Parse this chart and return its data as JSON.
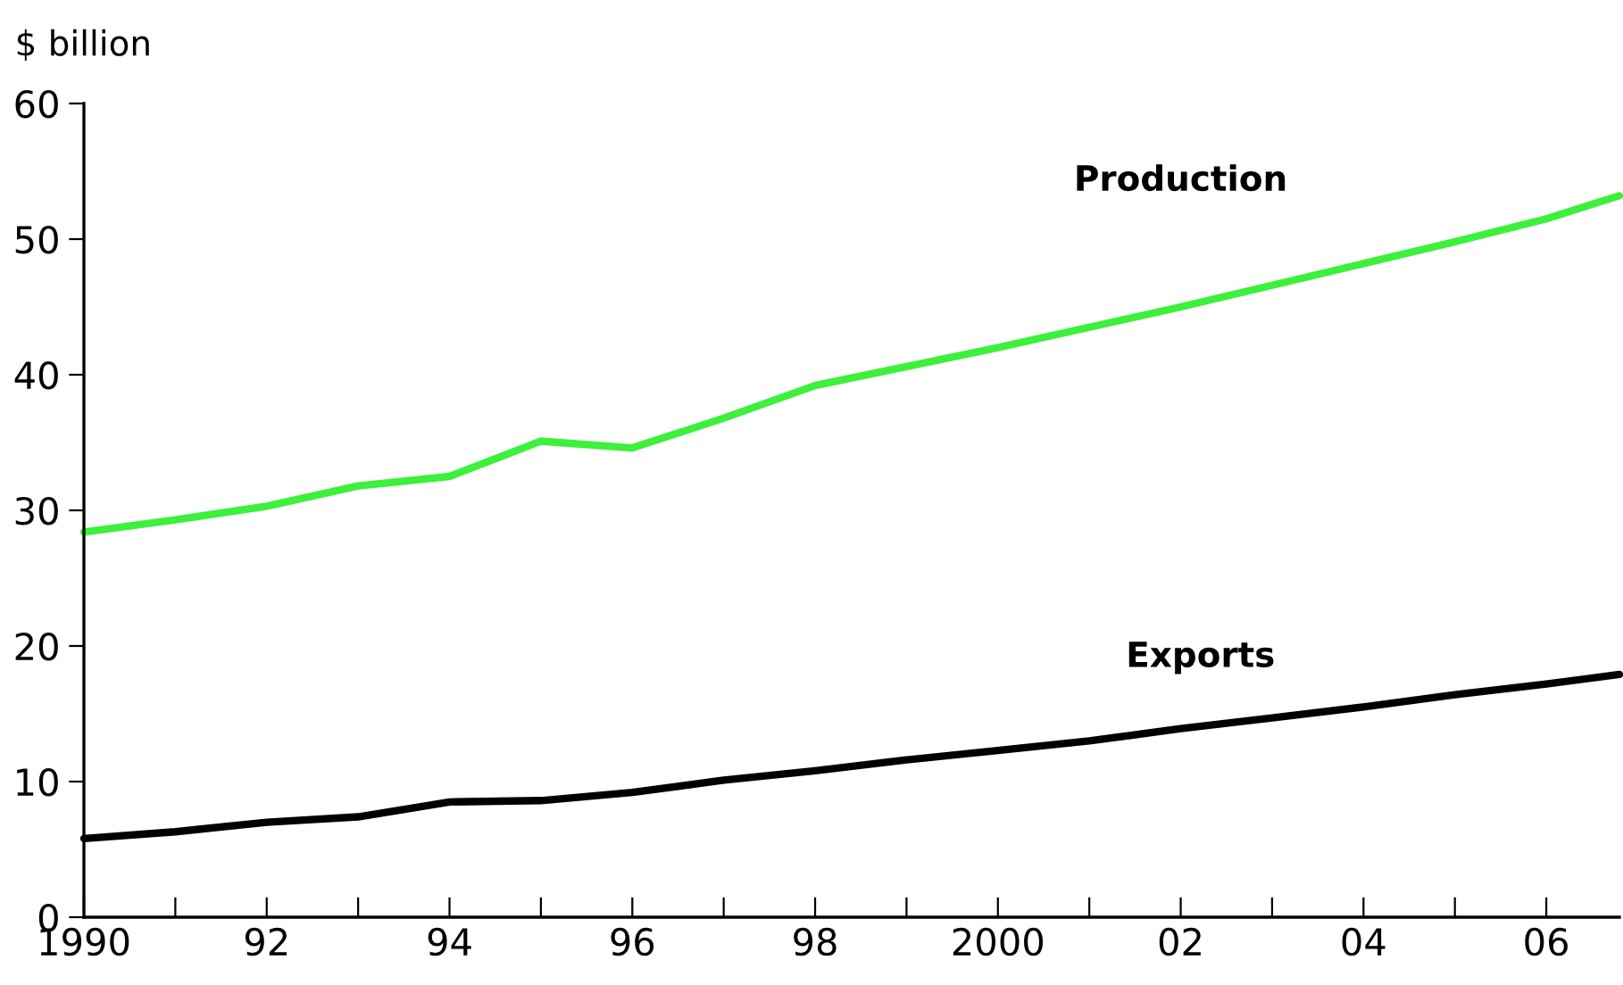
{
  "chart_data": {
    "type": "line",
    "ylabel": "$ billion",
    "x": [
      1990,
      1991,
      1992,
      1993,
      1994,
      1995,
      1996,
      1997,
      1998,
      1999,
      2000,
      2001,
      2002,
      2003,
      2004,
      2005,
      2006,
      2006.8
    ],
    "series": [
      {
        "name": "Production",
        "color": "#3cf03c",
        "values": [
          28.4,
          29.3,
          30.3,
          31.8,
          32.5,
          35.1,
          34.6,
          36.8,
          39.2,
          40.6,
          42.0,
          43.5,
          45.0,
          46.6,
          48.2,
          49.8,
          51.5,
          53.2
        ]
      },
      {
        "name": "Exports",
        "color": "#000000",
        "values": [
          5.8,
          6.3,
          7.0,
          7.4,
          8.5,
          8.6,
          9.2,
          10.1,
          10.8,
          11.6,
          12.3,
          13.0,
          13.9,
          14.7,
          15.5,
          16.4,
          17.2,
          17.9
        ]
      }
    ],
    "xlim": [
      1990,
      2006.8
    ],
    "ylim": [
      0,
      60
    ],
    "xticks": [
      1990,
      {
        "value": 1991,
        "label": null
      },
      {
        "value": 1992,
        "label": "92"
      },
      {
        "value": 1993,
        "label": null
      },
      {
        "value": 1994,
        "label": "94"
      },
      {
        "value": 1995,
        "label": null
      },
      {
        "value": 1996,
        "label": "96"
      },
      {
        "value": 1997,
        "label": null
      },
      {
        "value": 1998,
        "label": "98"
      },
      {
        "value": 1999,
        "label": null
      },
      2000,
      {
        "value": 2001,
        "label": null
      },
      {
        "value": 2002,
        "label": "02"
      },
      {
        "value": 2003,
        "label": null
      },
      {
        "value": 2004,
        "label": "04"
      },
      {
        "value": 2005,
        "label": null
      },
      {
        "value": 2006,
        "label": "06"
      }
    ],
    "yticks": [
      0,
      10,
      20,
      30,
      40,
      50,
      60
    ],
    "grid": false,
    "legend": false
  }
}
